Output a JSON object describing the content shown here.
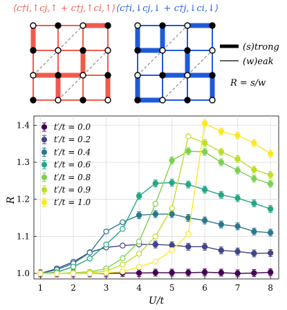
{
  "top_panel": {
    "left_label": "⟨c†i,↑cj,↑ + c†j,↑ci,↑⟩",
    "right_label": "⟨c†i,↓cj,↓ + c†j,↓ci,↓⟩",
    "legend": {
      "strong": "(s)trong",
      "weak": "(w)eak"
    },
    "ratio": "R = s/w",
    "colors": {
      "up": "#f05a4e",
      "down": "#1f5bd8"
    }
  },
  "chart_data": {
    "type": "line",
    "xlabel": "U/t",
    "ylabel": "R",
    "xlim": [
      0.8,
      8.25
    ],
    "ylim": [
      0.985,
      1.425
    ],
    "xticks": [
      1,
      2,
      3,
      4,
      5,
      6,
      7,
      8
    ],
    "yticks": [
      1.0,
      1.1,
      1.2,
      1.3,
      1.4
    ],
    "grid": true,
    "legend_placement": "top-left",
    "x": [
      1.0,
      1.5,
      2.0,
      2.5,
      3.0,
      3.5,
      4.0,
      4.5,
      5.0,
      5.5,
      6.0,
      6.5,
      7.0,
      7.5,
      8.0
    ],
    "series": [
      {
        "name": "t′/t = 0.0",
        "color": "#440154",
        "values": [
          1.0,
          1.0,
          1.0,
          1.0,
          1.0,
          1.001,
          1.001,
          1.002,
          1.002,
          1.002,
          1.003,
          1.002,
          1.0,
          1.001,
          1.003
        ],
        "filled": [
          true,
          true,
          true,
          true,
          true,
          true,
          true,
          true,
          true,
          true,
          true,
          true,
          true,
          true,
          true
        ]
      },
      {
        "name": "t′/t = 0.2",
        "color": "#414487",
        "values": [
          1.0,
          1.013,
          1.031,
          1.057,
          1.07,
          1.075,
          1.078,
          1.078,
          1.076,
          1.072,
          1.072,
          1.062,
          1.059,
          1.054,
          1.055
        ],
        "filled": [
          false,
          false,
          false,
          false,
          false,
          false,
          false,
          true,
          true,
          true,
          true,
          true,
          true,
          true,
          true
        ]
      },
      {
        "name": "t′/t = 0.4",
        "color": "#2a788e",
        "values": [
          1.0,
          1.01,
          1.027,
          1.056,
          1.113,
          1.138,
          1.157,
          1.16,
          1.16,
          1.15,
          1.143,
          1.132,
          1.127,
          1.113,
          1.11
        ],
        "filled": [
          false,
          false,
          false,
          false,
          false,
          false,
          true,
          true,
          true,
          true,
          true,
          true,
          true,
          true,
          true
        ]
      },
      {
        "name": "t′/t = 0.6",
        "color": "#22a884",
        "values": [
          1.0,
          1.003,
          1.018,
          1.04,
          1.078,
          1.12,
          1.209,
          1.243,
          1.245,
          1.24,
          1.226,
          1.212,
          1.203,
          1.189,
          1.174
        ],
        "filled": [
          false,
          false,
          false,
          false,
          false,
          false,
          true,
          true,
          true,
          true,
          true,
          true,
          true,
          true,
          true
        ]
      },
      {
        "name": "t′/t = 0.8",
        "color": "#7ad151",
        "values": [
          1.0,
          1.0,
          1.002,
          1.004,
          1.013,
          1.041,
          1.086,
          1.188,
          1.305,
          1.33,
          1.328,
          1.3,
          1.278,
          1.256,
          1.242
        ],
        "filled": [
          false,
          false,
          false,
          false,
          false,
          false,
          false,
          false,
          true,
          true,
          true,
          true,
          true,
          true,
          true
        ]
      },
      {
        "name": "t′/t = 0.9",
        "color": "#bddf26",
        "values": [
          1.0,
          1.0,
          1.0,
          1.002,
          1.006,
          1.024,
          1.053,
          1.1,
          1.176,
          1.37,
          1.352,
          1.328,
          1.309,
          1.28,
          1.266
        ],
        "filled": [
          false,
          false,
          false,
          false,
          false,
          false,
          false,
          false,
          false,
          false,
          true,
          true,
          true,
          true,
          true
        ]
      },
      {
        "name": "t′/t = 1.0",
        "color": "#fde725",
        "values": [
          1.0,
          1.0,
          1.0,
          1.0,
          1.001,
          1.005,
          1.017,
          1.032,
          1.063,
          1.106,
          1.405,
          1.383,
          1.372,
          1.352,
          1.323
        ],
        "filled": [
          false,
          false,
          false,
          false,
          false,
          false,
          false,
          false,
          false,
          false,
          true,
          true,
          true,
          true,
          true
        ]
      }
    ]
  }
}
